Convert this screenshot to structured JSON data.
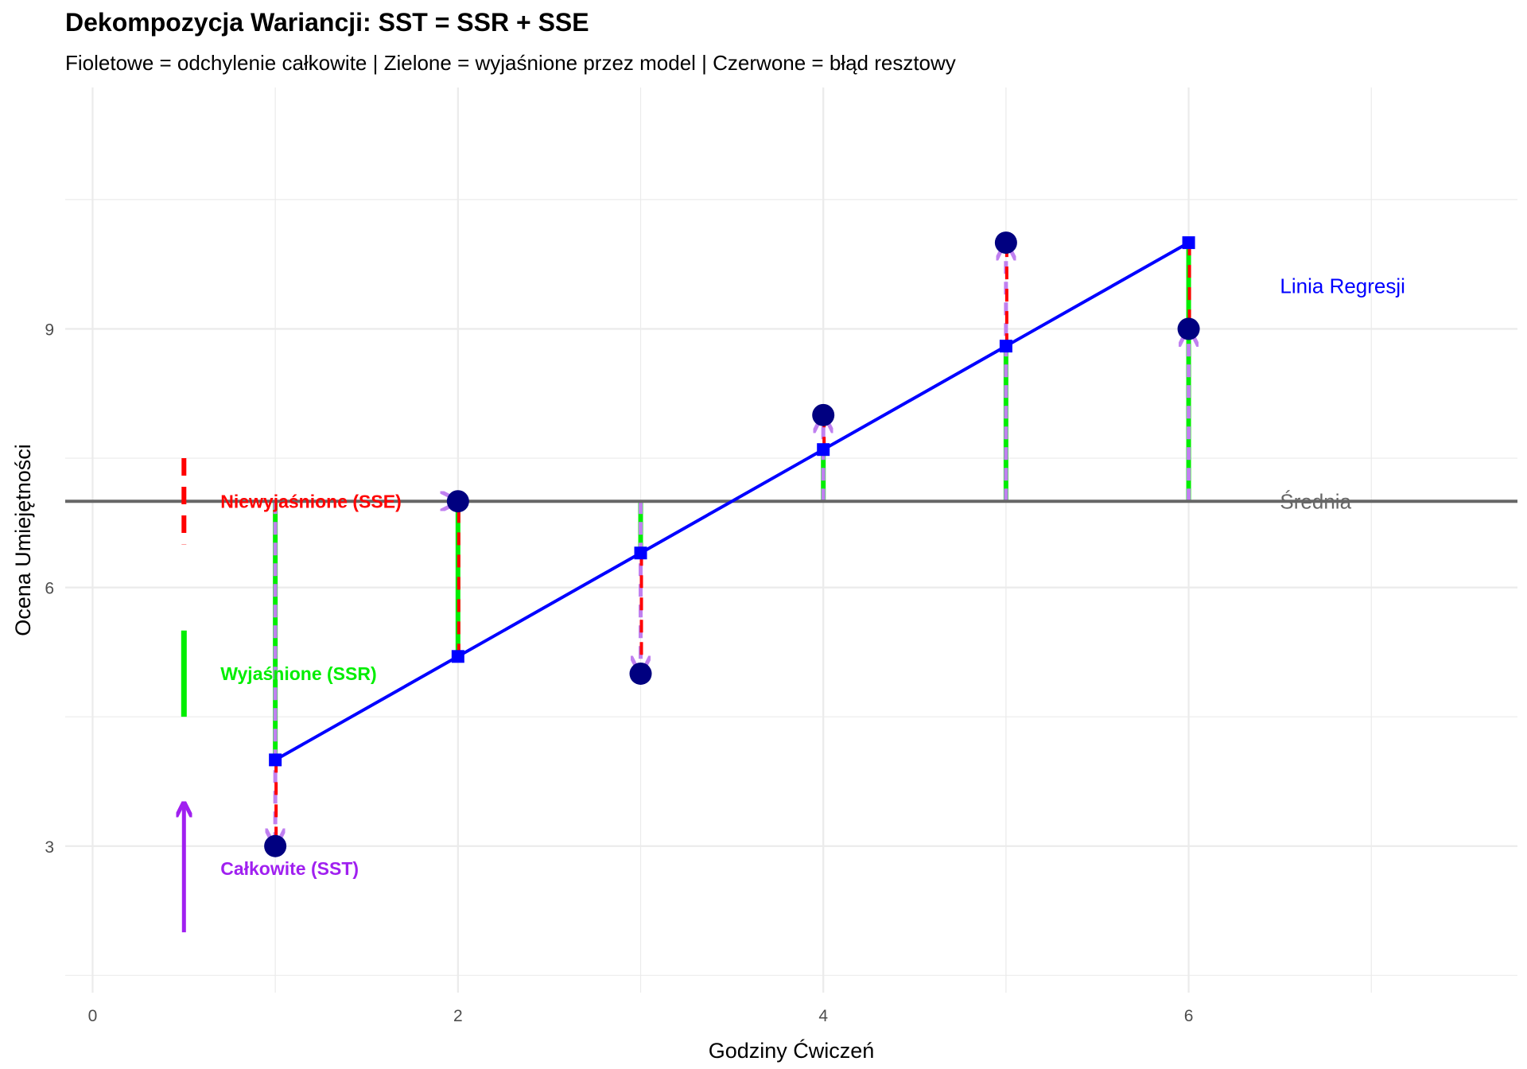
{
  "chart_data": {
    "type": "scatter",
    "title": "Dekompozycja Wariancji: SST = SSR + SSE",
    "subtitle": "Fioletowe = odchylenie całkowite | Zielone = wyjaśnione przez model | Czerwone = błąd resztowy",
    "xlabel": "Godziny Ćwiczeń",
    "ylabel": "Ocena Umiejętności",
    "xlim": [
      -0.15,
      7.8
    ],
    "ylim": [
      1.3,
      11.8
    ],
    "x_ticks": [
      0,
      2,
      4,
      6
    ],
    "y_ticks": [
      3,
      6,
      9
    ],
    "grid": true,
    "mean": 7.0,
    "regression": {
      "intercept": 2.8,
      "slope": 1.2
    },
    "points": [
      {
        "x": 1,
        "y": 3
      },
      {
        "x": 2,
        "y": 7
      },
      {
        "x": 3,
        "y": 5
      },
      {
        "x": 4,
        "y": 8
      },
      {
        "x": 5,
        "y": 10
      },
      {
        "x": 6,
        "y": 9
      }
    ],
    "annotations": {
      "regression_label": "Linia Regresji",
      "mean_label": "Średnia",
      "sse_label": "Niewyjaśnione (SSE)",
      "ssr_label": "Wyjaśnione (SSR)",
      "sst_label": "Całkowite (SST)"
    },
    "colors": {
      "total": "#a020f0",
      "explained": "#00ee00",
      "residual": "#ff0000",
      "regression": "#0000ff",
      "points": "#000080",
      "mean": "#666666",
      "grid": "#ebebeb"
    }
  }
}
